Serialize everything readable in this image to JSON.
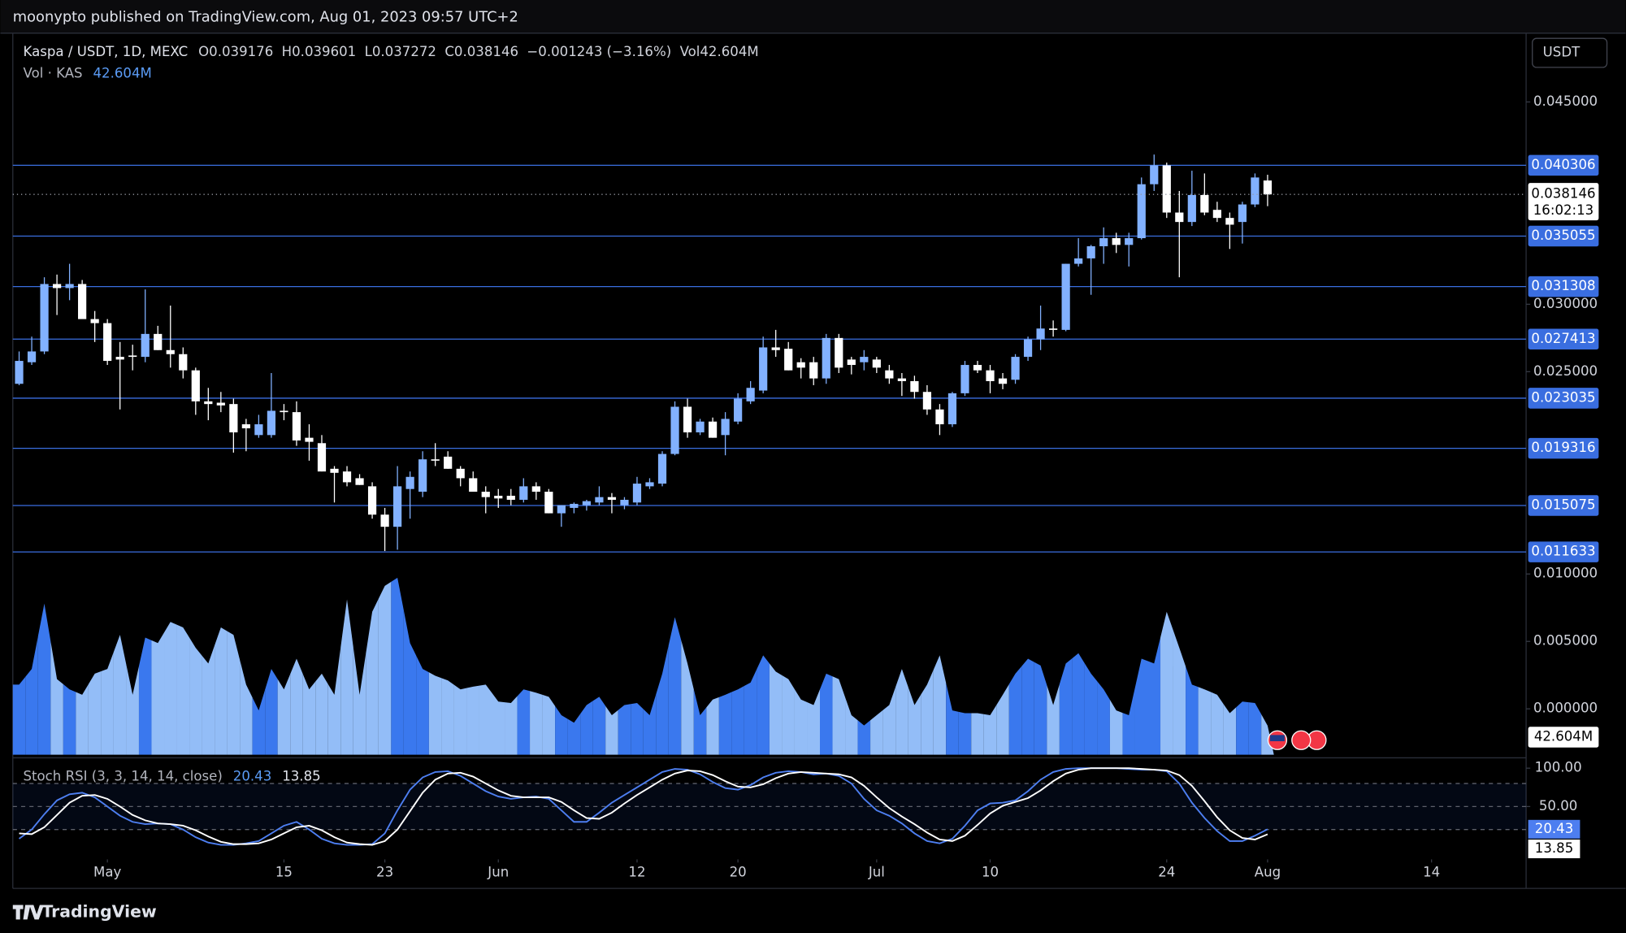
{
  "header": "moonypto published on TradingView.com, Aug 01, 2023 09:57 UTC+2",
  "footer_brand": "TradingView",
  "chart_data": {
    "type": "candlestick",
    "title": "Kaspa / USDT, 1D, MEXC",
    "legend_labels": {
      "open": "O",
      "high": "H",
      "low": "L",
      "close": "C",
      "volume": "Vol"
    },
    "change_text": "−0.001243 (−3.16%)",
    "volume_title": "Vol · KAS",
    "volume_label": "42.604M",
    "currency": "USDT",
    "countdown": "16:02:13",
    "stoch_title": "Stoch RSI (3, 3, 14, 14, close)",
    "up_color": "#82b1ff",
    "down_color": "#ffffff",
    "volume_up_color": "#3a78ee",
    "volume_down_color": "#93bdf7",
    "level_color": "#3a6ee0",
    "stoch_k_color": "#4d7ef0",
    "stoch_d_color": "#ffffff",
    "x": [
      "04-24",
      "04-25",
      "04-26",
      "04-27",
      "04-28",
      "04-29",
      "04-30",
      "05-01",
      "05-02",
      "05-03",
      "05-04",
      "05-05",
      "05-06",
      "05-07",
      "05-08",
      "05-09",
      "05-10",
      "05-11",
      "05-12",
      "05-13",
      "05-14",
      "05-15",
      "05-16",
      "05-17",
      "05-18",
      "05-19",
      "05-20",
      "05-21",
      "05-22",
      "05-23",
      "05-24",
      "05-25",
      "05-26",
      "05-27",
      "05-28",
      "05-29",
      "05-30",
      "05-31",
      "06-01",
      "06-02",
      "06-03",
      "06-04",
      "06-05",
      "06-06",
      "06-07",
      "06-08",
      "06-09",
      "06-10",
      "06-11",
      "06-12",
      "06-13",
      "06-14",
      "06-15",
      "06-16",
      "06-17",
      "06-18",
      "06-19",
      "06-20",
      "06-21",
      "06-22",
      "06-23",
      "06-24",
      "06-25",
      "06-26",
      "06-27",
      "06-28",
      "06-29",
      "06-30",
      "07-01",
      "07-02",
      "07-03",
      "07-04",
      "07-05",
      "07-06",
      "07-07",
      "07-08",
      "07-09",
      "07-10",
      "07-11",
      "07-12",
      "07-13",
      "07-14",
      "07-15",
      "07-16",
      "07-17",
      "07-18",
      "07-19",
      "07-20",
      "07-21",
      "07-22",
      "07-23",
      "07-24",
      "07-25",
      "07-26",
      "07-27",
      "07-28",
      "07-29",
      "07-30",
      "07-31",
      "08-01"
    ],
    "open": [
      0.0241,
      0.0257,
      0.0265,
      0.0315,
      0.0312,
      0.0315,
      0.0289,
      0.0286,
      0.0261,
      0.0262,
      0.0261,
      0.0278,
      0.0266,
      0.0263,
      0.0251,
      0.0228,
      0.0227,
      0.0226,
      0.0211,
      0.0203,
      0.0203,
      0.0221,
      0.022,
      0.0201,
      0.0197,
      0.0178,
      0.0176,
      0.0171,
      0.0165,
      0.0144,
      0.0135,
      0.0163,
      0.0161,
      0.0185,
      0.0187,
      0.0178,
      0.0171,
      0.0161,
      0.0158,
      0.0158,
      0.0155,
      0.0165,
      0.0161,
      0.0145,
      0.0149,
      0.0151,
      0.0153,
      0.0157,
      0.0151,
      0.0153,
      0.0165,
      0.0167,
      0.0189,
      0.0224,
      0.0205,
      0.0213,
      0.0203,
      0.0213,
      0.0228,
      0.0236,
      0.0268,
      0.0267,
      0.0257,
      0.0257,
      0.0245,
      0.0275,
      0.0259,
      0.0257,
      0.0259,
      0.0251,
      0.0245,
      0.0243,
      0.0235,
      0.0222,
      0.0211,
      0.0234,
      0.0255,
      0.0251,
      0.0245,
      0.0244,
      0.0261,
      0.0274,
      0.0282,
      0.0281,
      0.033,
      0.0334,
      0.0343,
      0.0349,
      0.0344,
      0.0349,
      0.0389,
      0.0403,
      0.0368,
      0.0361,
      0.0381,
      0.037,
      0.0364,
      0.0361,
      0.0374,
      0.039176
    ],
    "high": [
      0.0265,
      0.0276,
      0.032,
      0.0322,
      0.033,
      0.0318,
      0.0295,
      0.0289,
      0.0272,
      0.027,
      0.0311,
      0.0284,
      0.0299,
      0.0268,
      0.0253,
      0.0238,
      0.0235,
      0.023,
      0.0215,
      0.0218,
      0.0249,
      0.0226,
      0.0228,
      0.0211,
      0.0203,
      0.018,
      0.018,
      0.0174,
      0.0168,
      0.0149,
      0.018,
      0.0176,
      0.0191,
      0.0197,
      0.0191,
      0.018,
      0.0176,
      0.0165,
      0.0163,
      0.0163,
      0.0171,
      0.0168,
      0.0163,
      0.0151,
      0.0153,
      0.0155,
      0.0165,
      0.016,
      0.0157,
      0.0172,
      0.0171,
      0.0191,
      0.0228,
      0.023,
      0.0215,
      0.0216,
      0.022,
      0.0234,
      0.0243,
      0.0276,
      0.0281,
      0.0272,
      0.026,
      0.0261,
      0.0278,
      0.0278,
      0.0261,
      0.0266,
      0.0261,
      0.0255,
      0.0249,
      0.0247,
      0.024,
      0.0226,
      0.0235,
      0.0258,
      0.0258,
      0.0255,
      0.0249,
      0.0263,
      0.0276,
      0.0299,
      0.0288,
      0.033,
      0.0349,
      0.0344,
      0.0357,
      0.0353,
      0.0353,
      0.0394,
      0.0411,
      0.0405,
      0.0384,
      0.0399,
      0.0397,
      0.0376,
      0.0368,
      0.0376,
      0.0397,
      0.039601
    ],
    "low": [
      0.024,
      0.0255,
      0.0263,
      0.0292,
      0.0303,
      0.029,
      0.0272,
      0.0255,
      0.0222,
      0.0251,
      0.0257,
      0.0266,
      0.0253,
      0.0245,
      0.0218,
      0.0214,
      0.022,
      0.019,
      0.0191,
      0.0201,
      0.0201,
      0.0214,
      0.0195,
      0.0184,
      0.0176,
      0.0153,
      0.0165,
      0.0166,
      0.0141,
      0.0117,
      0.0118,
      0.0141,
      0.0157,
      0.018,
      0.0178,
      0.0165,
      0.0161,
      0.0145,
      0.0149,
      0.0151,
      0.0153,
      0.0155,
      0.0145,
      0.0135,
      0.0145,
      0.0147,
      0.0151,
      0.0145,
      0.0148,
      0.0151,
      0.0163,
      0.0165,
      0.0188,
      0.0201,
      0.0203,
      0.0201,
      0.0188,
      0.0211,
      0.0226,
      0.0234,
      0.0261,
      0.0251,
      0.0245,
      0.024,
      0.0241,
      0.0249,
      0.0248,
      0.0251,
      0.0249,
      0.0241,
      0.0232,
      0.023,
      0.0218,
      0.0203,
      0.0209,
      0.0232,
      0.0249,
      0.0234,
      0.0237,
      0.0241,
      0.0258,
      0.0266,
      0.0276,
      0.028,
      0.0328,
      0.0307,
      0.033,
      0.0338,
      0.0328,
      0.0348,
      0.0384,
      0.0364,
      0.032,
      0.0358,
      0.0366,
      0.0361,
      0.0341,
      0.0345,
      0.0372,
      0.037272
    ],
    "close": [
      0.0258,
      0.0265,
      0.0315,
      0.0312,
      0.0315,
      0.0289,
      0.0286,
      0.0258,
      0.0259,
      0.0261,
      0.0278,
      0.0266,
      0.0263,
      0.0251,
      0.0228,
      0.0226,
      0.0225,
      0.0205,
      0.0208,
      0.0211,
      0.0221,
      0.022,
      0.0199,
      0.0198,
      0.0176,
      0.0175,
      0.0168,
      0.0166,
      0.0144,
      0.0135,
      0.0165,
      0.0172,
      0.0185,
      0.0184,
      0.0178,
      0.0171,
      0.0161,
      0.0157,
      0.0156,
      0.0155,
      0.0165,
      0.0161,
      0.0145,
      0.0151,
      0.0152,
      0.0154,
      0.0157,
      0.0155,
      0.0155,
      0.0167,
      0.0168,
      0.0189,
      0.0224,
      0.0205,
      0.0213,
      0.0201,
      0.0215,
      0.023,
      0.0238,
      0.0268,
      0.0266,
      0.0251,
      0.0253,
      0.0245,
      0.0275,
      0.0253,
      0.0255,
      0.0261,
      0.0253,
      0.0245,
      0.0243,
      0.0235,
      0.0222,
      0.0211,
      0.0234,
      0.0255,
      0.0251,
      0.0243,
      0.0241,
      0.0261,
      0.0274,
      0.0282,
      0.0281,
      0.033,
      0.0334,
      0.0343,
      0.0349,
      0.0344,
      0.0349,
      0.0389,
      0.0403,
      0.0368,
      0.0361,
      0.0381,
      0.0368,
      0.0364,
      0.0359,
      0.0374,
      0.0394,
      0.038146
    ],
    "volume": [
      103,
      126,
      222,
      111,
      96,
      88,
      119,
      126,
      176,
      88,
      172,
      164,
      195,
      187,
      157,
      134,
      187,
      176,
      103,
      65,
      126,
      96,
      141,
      96,
      119,
      88,
      228,
      88,
      210,
      248,
      260,
      164,
      126,
      116,
      109,
      96,
      100,
      103,
      78,
      76,
      96,
      91,
      85,
      58,
      47,
      73,
      85,
      58,
      73,
      76,
      58,
      119,
      202,
      134,
      58,
      81,
      88,
      96,
      106,
      146,
      122,
      111,
      81,
      73,
      119,
      111,
      58,
      43,
      58,
      73,
      126,
      73,
      103,
      146,
      65,
      61,
      61,
      58,
      88,
      119,
      141,
      131,
      73,
      134,
      149,
      119,
      96,
      65,
      58,
      141,
      134,
      210,
      157,
      103,
      96,
      88,
      61,
      78,
      76,
      42.604
    ],
    "stoch_k": [
      8,
      20,
      40,
      58,
      66,
      68,
      62,
      50,
      38,
      30,
      27,
      28,
      27,
      20,
      10,
      3,
      0,
      0,
      2,
      5,
      15,
      25,
      30,
      20,
      8,
      2,
      0,
      0,
      1,
      15,
      45,
      72,
      88,
      95,
      96,
      90,
      80,
      70,
      63,
      60,
      62,
      63,
      60,
      45,
      30,
      30,
      42,
      55,
      65,
      75,
      85,
      95,
      99,
      98,
      92,
      82,
      74,
      72,
      78,
      88,
      94,
      96,
      95,
      92,
      93,
      90,
      80,
      60,
      45,
      38,
      28,
      15,
      5,
      2,
      8,
      25,
      45,
      54,
      55,
      58,
      70,
      85,
      95,
      99,
      100,
      100,
      100,
      100,
      99,
      98,
      98,
      96,
      80,
      55,
      35,
      18,
      5,
      5,
      12,
      20.43
    ],
    "stoch_d": [
      15,
      14,
      23,
      39,
      55,
      64,
      65,
      60,
      50,
      39,
      32,
      28,
      27,
      25,
      19,
      11,
      4,
      1,
      1,
      2,
      7,
      15,
      23,
      25,
      19,
      10,
      3,
      1,
      0,
      5,
      20,
      44,
      68,
      85,
      93,
      94,
      89,
      80,
      71,
      64,
      62,
      62,
      62,
      56,
      45,
      35,
      34,
      42,
      54,
      65,
      75,
      85,
      93,
      97,
      96,
      91,
      83,
      76,
      75,
      79,
      87,
      93,
      95,
      94,
      93,
      92,
      88,
      77,
      62,
      48,
      37,
      27,
      16,
      7,
      5,
      12,
      26,
      41,
      51,
      56,
      61,
      71,
      83,
      93,
      98,
      100,
      100,
      100,
      100,
      99,
      98,
      97,
      91,
      77,
      57,
      36,
      19,
      9,
      7,
      13.85
    ],
    "levels": [
      0.040306,
      0.035055,
      0.031308,
      0.027413,
      0.023035,
      0.019316,
      0.015075,
      0.011633
    ],
    "xlim": [
      "04-24",
      "08-21"
    ],
    "xticks": [
      {
        "value": "05-01",
        "label": "May"
      },
      {
        "value": "05-15",
        "label": "15"
      },
      {
        "value": "05-23",
        "label": "23"
      },
      {
        "value": "06-01",
        "label": "Jun"
      },
      {
        "value": "06-12",
        "label": "12"
      },
      {
        "value": "06-20",
        "label": "20"
      },
      {
        "value": "07-01",
        "label": "Jul"
      },
      {
        "value": "07-10",
        "label": "10"
      },
      {
        "value": "07-24",
        "label": "24"
      },
      {
        "value": "08-01",
        "label": "Aug"
      },
      {
        "value": "08-14",
        "label": "14"
      }
    ],
    "ylim": [
      -0.0034,
      0.0501
    ],
    "yticks": [
      {
        "value": 0.045,
        "label": "0.045000"
      },
      {
        "value": 0.03,
        "label": "0.030000"
      },
      {
        "value": 0.025,
        "label": "0.025000"
      },
      {
        "value": 0.01,
        "label": "0.010000"
      },
      {
        "value": 0.005,
        "label": "0.005000"
      },
      {
        "value": 0,
        "label": "0.000000"
      }
    ],
    "volume_ylim": [
      0,
      300
    ],
    "stoch_ylim": [
      0,
      100
    ],
    "stoch_yticks": [
      {
        "value": 100,
        "label": "100.00"
      },
      {
        "value": 50,
        "label": "50.00"
      }
    ],
    "stoch_bands": [
      80,
      50,
      20
    ],
    "grid": false
  }
}
